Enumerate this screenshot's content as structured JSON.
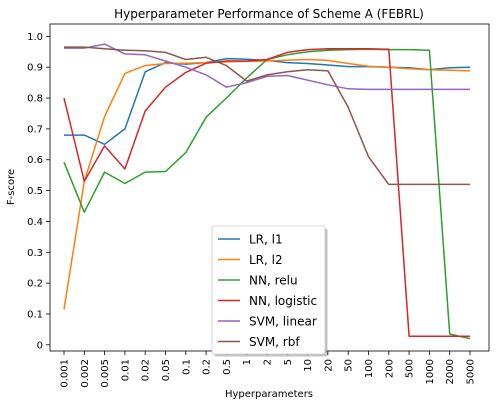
{
  "chart_data": {
    "type": "line",
    "title": "Hyperparameter Performance of Scheme A (FEBRL)",
    "xlabel": "Hyperparameters",
    "ylabel": "F-score",
    "categories": [
      "0.001",
      "0.002",
      "0.005",
      "0.01",
      "0.02",
      "0.05",
      "0.1",
      "0.2",
      "0.5",
      "1",
      "2",
      "5",
      "10",
      "20",
      "50",
      "100",
      "200",
      "500",
      "1000",
      "2000",
      "5000"
    ],
    "ylim": [
      -0.02,
      1.04
    ],
    "yticks": [
      "0",
      "0.1",
      "0.2",
      "0.3",
      "0.4",
      "0.5",
      "0.6",
      "0.7",
      "0.8",
      "0.9",
      "1.0"
    ],
    "grid": false,
    "legend_position": "bottom-center",
    "series": [
      {
        "name": "LR, l1",
        "color": "#1f77b4",
        "values": [
          0.68,
          0.68,
          0.65,
          0.7,
          0.885,
          0.915,
          0.91,
          0.915,
          0.928,
          0.926,
          0.922,
          0.915,
          0.912,
          0.907,
          0.902,
          0.902,
          0.9,
          0.898,
          0.892,
          0.898,
          0.9
        ]
      },
      {
        "name": "LR, l2",
        "color": "#ff7f0e",
        "values": [
          0.115,
          0.53,
          0.74,
          0.88,
          0.905,
          0.912,
          0.913,
          0.915,
          0.917,
          0.919,
          0.92,
          0.923,
          0.925,
          0.922,
          0.912,
          0.903,
          0.9,
          0.895,
          0.892,
          0.89,
          0.888
        ]
      },
      {
        "name": "NN, relu",
        "color": "#2ca02c",
        "values": [
          0.592,
          0.43,
          0.56,
          0.523,
          0.56,
          0.562,
          0.623,
          0.738,
          0.8,
          0.865,
          0.925,
          0.94,
          0.95,
          0.955,
          0.957,
          0.958,
          0.957,
          0.957,
          0.955,
          0.035,
          0.02
        ]
      },
      {
        "name": "NN, logistic",
        "color": "#d62728",
        "values": [
          0.8,
          0.53,
          0.645,
          0.57,
          0.758,
          0.835,
          0.883,
          0.913,
          0.92,
          0.92,
          0.925,
          0.948,
          0.957,
          0.96,
          0.96,
          0.96,
          0.958,
          0.028,
          0.028,
          0.028,
          0.028
        ]
      },
      {
        "name": "SVM, linear",
        "color": "#9467bd",
        "values": [
          0.962,
          0.962,
          0.975,
          0.943,
          0.94,
          0.92,
          0.9,
          0.875,
          0.835,
          0.85,
          0.87,
          0.873,
          0.858,
          0.843,
          0.83,
          0.828,
          0.828,
          0.828,
          0.828,
          0.828,
          0.828
        ]
      },
      {
        "name": "SVM, rbf",
        "color": "#8c564b",
        "values": [
          0.965,
          0.965,
          0.96,
          0.955,
          0.953,
          0.948,
          0.925,
          0.932,
          0.905,
          0.855,
          0.875,
          0.885,
          0.892,
          0.888,
          0.77,
          0.61,
          0.52,
          0.52,
          0.52,
          0.52,
          0.52
        ]
      }
    ]
  }
}
